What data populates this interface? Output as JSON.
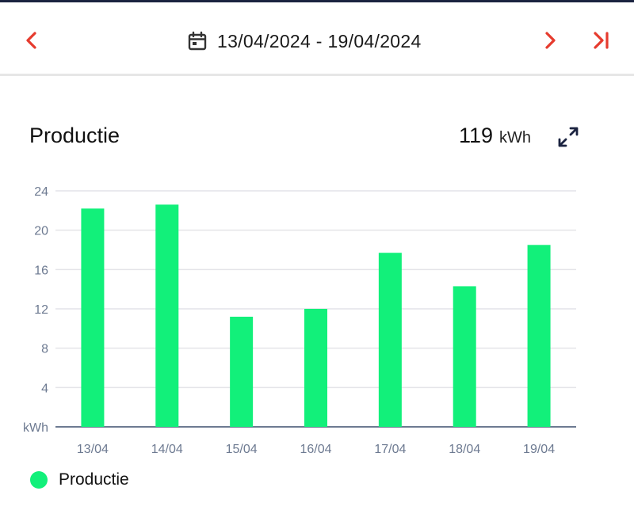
{
  "header": {
    "date_range": "13/04/2024 - 19/04/2024",
    "prev_icon": "chevron-left-icon",
    "calendar_icon": "calendar-icon",
    "next_icon": "chevron-right-icon",
    "last_icon": "skip-to-end-icon",
    "accent_color": "#e63b2e"
  },
  "card": {
    "title": "Productie",
    "total_value": "119",
    "total_unit": "kWh",
    "expand_icon": "expand-icon"
  },
  "chart_data": {
    "type": "bar",
    "title": "Productie",
    "categories": [
      "13/04",
      "14/04",
      "15/04",
      "16/04",
      "17/04",
      "18/04",
      "19/04"
    ],
    "series": [
      {
        "name": "Productie",
        "values": [
          22.2,
          22.6,
          11.2,
          12.0,
          17.7,
          14.3,
          18.5
        ],
        "color": "#12f07a"
      }
    ],
    "ylabel": "kWh",
    "ylim": [
      0,
      24
    ],
    "yticks": [
      "24",
      "20",
      "16",
      "12",
      "8",
      "4"
    ],
    "grid": true,
    "legend": "bottom-left"
  }
}
